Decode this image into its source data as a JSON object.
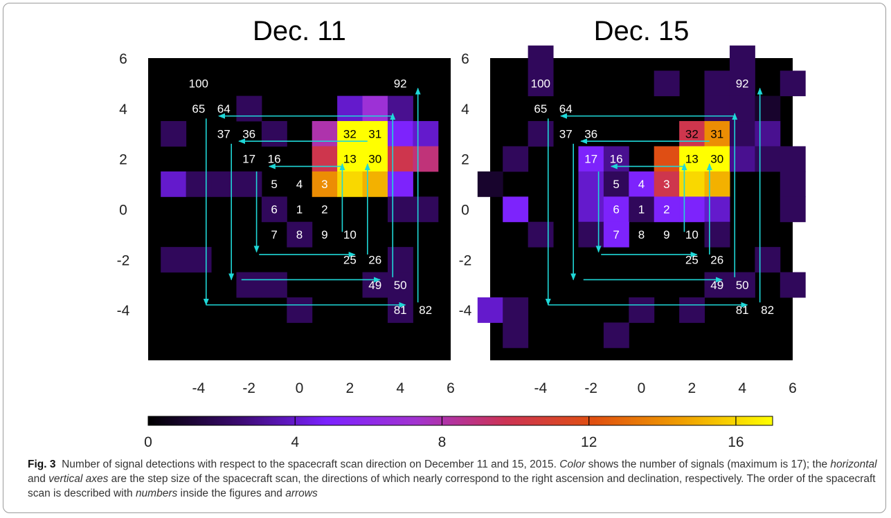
{
  "chart_data": [
    {
      "type": "heatmap",
      "title": "Dec. 11",
      "xlim": [
        -6,
        6
      ],
      "ylim": [
        -6,
        6
      ],
      "x_ticks": [
        "-4",
        "-2",
        "0",
        "2",
        "4",
        "6"
      ],
      "y_ticks": [
        "6",
        "4",
        "2",
        "0",
        "-2",
        "-4"
      ],
      "cells": [
        {
          "x": 2,
          "y": 4,
          "value": 4
        },
        {
          "x": 3,
          "y": 4,
          "value": 7
        },
        {
          "x": 4,
          "y": 4,
          "value": 3
        },
        {
          "x": -2,
          "y": 4,
          "value": 2
        },
        {
          "x": -5,
          "y": 3,
          "value": 2
        },
        {
          "x": -1,
          "y": 3,
          "value": 2
        },
        {
          "x": 1,
          "y": 3,
          "value": 8
        },
        {
          "x": 2,
          "y": 3,
          "value": 17
        },
        {
          "x": 3,
          "y": 3,
          "value": 17
        },
        {
          "x": 4,
          "y": 3,
          "value": 5
        },
        {
          "x": 5,
          "y": 3,
          "value": 4
        },
        {
          "x": 1,
          "y": 2,
          "value": 10
        },
        {
          "x": 2,
          "y": 2,
          "value": 17
        },
        {
          "x": 3,
          "y": 2,
          "value": 17
        },
        {
          "x": 4,
          "y": 2,
          "value": 10
        },
        {
          "x": 5,
          "y": 2,
          "value": 9
        },
        {
          "x": -5,
          "y": 1,
          "value": 4
        },
        {
          "x": -4,
          "y": 1,
          "value": 2
        },
        {
          "x": -3,
          "y": 1,
          "value": 2
        },
        {
          "x": -2,
          "y": 1,
          "value": 2
        },
        {
          "x": 1,
          "y": 1,
          "value": 14
        },
        {
          "x": 2,
          "y": 1,
          "value": 16
        },
        {
          "x": 3,
          "y": 1,
          "value": 15
        },
        {
          "x": 4,
          "y": 1,
          "value": 5
        },
        {
          "x": -1,
          "y": 0,
          "value": 2
        },
        {
          "x": 4,
          "y": 0,
          "value": 2
        },
        {
          "x": 5,
          "y": 0,
          "value": 2
        },
        {
          "x": 0,
          "y": -1,
          "value": 2
        },
        {
          "x": -5,
          "y": -2,
          "value": 2
        },
        {
          "x": -4,
          "y": -2,
          "value": 2
        },
        {
          "x": 4,
          "y": -2,
          "value": 2
        },
        {
          "x": -2,
          "y": -3,
          "value": 2
        },
        {
          "x": -1,
          "y": -3,
          "value": 2
        },
        {
          "x": 3,
          "y": -3,
          "value": 2
        },
        {
          "x": 4,
          "y": -3,
          "value": 2
        },
        {
          "x": 0,
          "y": -4,
          "value": 2
        },
        {
          "x": 4,
          "y": -4,
          "value": 2
        }
      ],
      "labels": [
        {
          "text": "100",
          "x": -4,
          "y": 5,
          "color": "white"
        },
        {
          "text": "92",
          "x": 4,
          "y": 5,
          "color": "white"
        },
        {
          "text": "65",
          "x": -4,
          "y": 4,
          "color": "white"
        },
        {
          "text": "64",
          "x": -3,
          "y": 4,
          "color": "white"
        },
        {
          "text": "37",
          "x": -3,
          "y": 3,
          "color": "white"
        },
        {
          "text": "36",
          "x": -2,
          "y": 3,
          "color": "white"
        },
        {
          "text": "32",
          "x": 2,
          "y": 3,
          "color": "black"
        },
        {
          "text": "31",
          "x": 3,
          "y": 3,
          "color": "black"
        },
        {
          "text": "17",
          "x": -2,
          "y": 2,
          "color": "white"
        },
        {
          "text": "16",
          "x": -1,
          "y": 2,
          "color": "white"
        },
        {
          "text": "13",
          "x": 2,
          "y": 2,
          "color": "black"
        },
        {
          "text": "30",
          "x": 3,
          "y": 2,
          "color": "black"
        },
        {
          "text": "5",
          "x": -1,
          "y": 1,
          "color": "white"
        },
        {
          "text": "4",
          "x": 0,
          "y": 1,
          "color": "white"
        },
        {
          "text": "3",
          "x": 1,
          "y": 1,
          "color": "white"
        },
        {
          "text": "6",
          "x": -1,
          "y": 0,
          "color": "white"
        },
        {
          "text": "1",
          "x": 0,
          "y": 0,
          "color": "white"
        },
        {
          "text": "2",
          "x": 1,
          "y": 0,
          "color": "white"
        },
        {
          "text": "7",
          "x": -1,
          "y": -1,
          "color": "white"
        },
        {
          "text": "8",
          "x": 0,
          "y": -1,
          "color": "white"
        },
        {
          "text": "9",
          "x": 1,
          "y": -1,
          "color": "white"
        },
        {
          "text": "10",
          "x": 2,
          "y": -1,
          "color": "white"
        },
        {
          "text": "25",
          "x": 2,
          "y": -2,
          "color": "white"
        },
        {
          "text": "26",
          "x": 3,
          "y": -2,
          "color": "white"
        },
        {
          "text": "49",
          "x": 3,
          "y": -3,
          "color": "white"
        },
        {
          "text": "50",
          "x": 4,
          "y": -3,
          "color": "white"
        },
        {
          "text": "81",
          "x": 4,
          "y": -4,
          "color": "white"
        },
        {
          "text": "82",
          "x": 5,
          "y": -4,
          "color": "white"
        }
      ],
      "arrows": [
        {
          "x1": 1.7,
          "y1": -0.9,
          "x2": 1.7,
          "y2": 1.8
        },
        {
          "x1": 1.7,
          "y1": 1.7,
          "x2": -1.2,
          "y2": 1.7
        },
        {
          "x1": -1.7,
          "y1": 1.5,
          "x2": -1.7,
          "y2": -1.7
        },
        {
          "x1": -1.6,
          "y1": -1.8,
          "x2": 2.2,
          "y2": -1.8
        },
        {
          "x1": 2.7,
          "y1": -1.8,
          "x2": 2.7,
          "y2": 1.8
        },
        {
          "x1": 2.7,
          "y1": 2.7,
          "x2": -2.4,
          "y2": 2.7
        },
        {
          "x1": -2.7,
          "y1": 2.6,
          "x2": -2.7,
          "y2": -2.8
        },
        {
          "x1": -2.3,
          "y1": -2.8,
          "x2": 3.2,
          "y2": -2.8
        },
        {
          "x1": 3.7,
          "y1": -2.7,
          "x2": 3.7,
          "y2": 3.8
        },
        {
          "x1": 3.7,
          "y1": 3.7,
          "x2": -3.2,
          "y2": 3.7
        },
        {
          "x1": -3.7,
          "y1": 3.6,
          "x2": -3.7,
          "y2": -3.8
        },
        {
          "x1": -3.7,
          "y1": -3.8,
          "x2": 4.2,
          "y2": -3.8
        },
        {
          "x1": 4.7,
          "y1": -3.7,
          "x2": 4.7,
          "y2": 4.8
        }
      ]
    },
    {
      "type": "heatmap",
      "title": "Dec. 15",
      "xlim": [
        -6,
        6
      ],
      "ylim": [
        -6,
        6
      ],
      "x_ticks": [
        "-4",
        "-2",
        "0",
        "2",
        "4",
        "6"
      ],
      "y_ticks": [
        "6",
        "4",
        "2",
        "0",
        "-2",
        "-4"
      ],
      "cells": [
        {
          "x": -4,
          "y": 6,
          "value": 2
        },
        {
          "x": 4,
          "y": 6,
          "value": 2
        },
        {
          "x": -4,
          "y": 5,
          "value": 2
        },
        {
          "x": 1,
          "y": 5,
          "value": 2
        },
        {
          "x": 3,
          "y": 5,
          "value": 2
        },
        {
          "x": 4,
          "y": 5,
          "value": 2
        },
        {
          "x": 6,
          "y": 5,
          "value": 2
        },
        {
          "x": 3,
          "y": 4,
          "value": 2
        },
        {
          "x": 4,
          "y": 4,
          "value": 2
        },
        {
          "x": 5,
          "y": 4,
          "value": 1
        },
        {
          "x": -4,
          "y": 3,
          "value": 2
        },
        {
          "x": 2,
          "y": 3,
          "value": 10
        },
        {
          "x": 3,
          "y": 3,
          "value": 14
        },
        {
          "x": 4,
          "y": 3,
          "value": 2
        },
        {
          "x": 5,
          "y": 3,
          "value": 3
        },
        {
          "x": -5,
          "y": 2,
          "value": 2
        },
        {
          "x": -2,
          "y": 2,
          "value": 5
        },
        {
          "x": -1,
          "y": 2,
          "value": 3
        },
        {
          "x": 1,
          "y": 2,
          "value": 12
        },
        {
          "x": 2,
          "y": 2,
          "value": 17
        },
        {
          "x": 3,
          "y": 2,
          "value": 17
        },
        {
          "x": 4,
          "y": 2,
          "value": 3
        },
        {
          "x": 5,
          "y": 2,
          "value": 2
        },
        {
          "x": 6,
          "y": 2,
          "value": 2
        },
        {
          "x": -6,
          "y": 1,
          "value": 1
        },
        {
          "x": -2,
          "y": 1,
          "value": 4
        },
        {
          "x": -1,
          "y": 1,
          "value": 2
        },
        {
          "x": 0,
          "y": 1,
          "value": 5
        },
        {
          "x": 1,
          "y": 1,
          "value": 10
        },
        {
          "x": 2,
          "y": 1,
          "value": 16
        },
        {
          "x": 3,
          "y": 1,
          "value": 15
        },
        {
          "x": 6,
          "y": 1,
          "value": 2
        },
        {
          "x": -5,
          "y": 0,
          "value": 5
        },
        {
          "x": -2,
          "y": 0,
          "value": 4
        },
        {
          "x": -1,
          "y": 0,
          "value": 5
        },
        {
          "x": 0,
          "y": 0,
          "value": 2
        },
        {
          "x": 1,
          "y": 0,
          "value": 5
        },
        {
          "x": 2,
          "y": 0,
          "value": 5
        },
        {
          "x": 3,
          "y": 0,
          "value": 4
        },
        {
          "x": 6,
          "y": 0,
          "value": 2
        },
        {
          "x": -4,
          "y": -1,
          "value": 2
        },
        {
          "x": -2,
          "y": -1,
          "value": 2
        },
        {
          "x": -1,
          "y": -1,
          "value": 5
        },
        {
          "x": 3,
          "y": -1,
          "value": 2
        },
        {
          "x": 5,
          "y": -2,
          "value": 2
        },
        {
          "x": 3,
          "y": -3,
          "value": 2
        },
        {
          "x": 4,
          "y": -3,
          "value": 2
        },
        {
          "x": 6,
          "y": -3,
          "value": 2
        },
        {
          "x": -6,
          "y": -4,
          "value": 4
        },
        {
          "x": -5,
          "y": -4,
          "value": 2
        },
        {
          "x": 0,
          "y": -4,
          "value": 2
        },
        {
          "x": 2,
          "y": -4,
          "value": 2
        },
        {
          "x": -5,
          "y": -5,
          "value": 2
        },
        {
          "x": -1,
          "y": -5,
          "value": 2
        }
      ],
      "labels": [
        {
          "text": "100",
          "x": -4,
          "y": 5,
          "color": "white"
        },
        {
          "text": "92",
          "x": 4,
          "y": 5,
          "color": "white"
        },
        {
          "text": "65",
          "x": -4,
          "y": 4,
          "color": "white"
        },
        {
          "text": "64",
          "x": -3,
          "y": 4,
          "color": "white"
        },
        {
          "text": "37",
          "x": -3,
          "y": 3,
          "color": "white"
        },
        {
          "text": "36",
          "x": -2,
          "y": 3,
          "color": "white"
        },
        {
          "text": "32",
          "x": 2,
          "y": 3,
          "color": "black"
        },
        {
          "text": "31",
          "x": 3,
          "y": 3,
          "color": "black"
        },
        {
          "text": "17",
          "x": -2,
          "y": 2,
          "color": "white"
        },
        {
          "text": "16",
          "x": -1,
          "y": 2,
          "color": "white"
        },
        {
          "text": "13",
          "x": 2,
          "y": 2,
          "color": "black"
        },
        {
          "text": "30",
          "x": 3,
          "y": 2,
          "color": "black"
        },
        {
          "text": "5",
          "x": -1,
          "y": 1,
          "color": "white"
        },
        {
          "text": "4",
          "x": 0,
          "y": 1,
          "color": "white"
        },
        {
          "text": "3",
          "x": 1,
          "y": 1,
          "color": "white"
        },
        {
          "text": "6",
          "x": -1,
          "y": 0,
          "color": "white"
        },
        {
          "text": "1",
          "x": 0,
          "y": 0,
          "color": "white"
        },
        {
          "text": "2",
          "x": 1,
          "y": 0,
          "color": "white"
        },
        {
          "text": "7",
          "x": -1,
          "y": -1,
          "color": "white"
        },
        {
          "text": "8",
          "x": 0,
          "y": -1,
          "color": "white"
        },
        {
          "text": "9",
          "x": 1,
          "y": -1,
          "color": "white"
        },
        {
          "text": "10",
          "x": 2,
          "y": -1,
          "color": "white"
        },
        {
          "text": "25",
          "x": 2,
          "y": -2,
          "color": "white"
        },
        {
          "text": "26",
          "x": 3,
          "y": -2,
          "color": "white"
        },
        {
          "text": "49",
          "x": 3,
          "y": -3,
          "color": "white"
        },
        {
          "text": "50",
          "x": 4,
          "y": -3,
          "color": "white"
        },
        {
          "text": "81",
          "x": 4,
          "y": -4,
          "color": "white"
        },
        {
          "text": "82",
          "x": 5,
          "y": -4,
          "color": "white"
        }
      ],
      "arrows": [
        {
          "x1": 1.7,
          "y1": -0.9,
          "x2": 1.7,
          "y2": 1.8
        },
        {
          "x1": 1.7,
          "y1": 1.7,
          "x2": -1.2,
          "y2": 1.7
        },
        {
          "x1": -1.7,
          "y1": 1.5,
          "x2": -1.7,
          "y2": -1.7
        },
        {
          "x1": -1.6,
          "y1": -1.8,
          "x2": 2.2,
          "y2": -1.8
        },
        {
          "x1": 2.7,
          "y1": -1.8,
          "x2": 2.7,
          "y2": 1.8
        },
        {
          "x1": 2.7,
          "y1": 2.7,
          "x2": -2.4,
          "y2": 2.7
        },
        {
          "x1": -2.7,
          "y1": 2.6,
          "x2": -2.7,
          "y2": -2.8
        },
        {
          "x1": -2.3,
          "y1": -2.8,
          "x2": 3.2,
          "y2": -2.8
        },
        {
          "x1": 3.7,
          "y1": -2.7,
          "x2": 3.7,
          "y2": 3.8
        },
        {
          "x1": 3.7,
          "y1": 3.7,
          "x2": -3.2,
          "y2": 3.7
        },
        {
          "x1": -3.7,
          "y1": 3.6,
          "x2": -3.7,
          "y2": -3.8
        },
        {
          "x1": -3.7,
          "y1": -3.8,
          "x2": 4.2,
          "y2": -3.8
        },
        {
          "x1": 4.7,
          "y1": -3.7,
          "x2": 4.7,
          "y2": 4.8
        }
      ]
    }
  ],
  "colorbar": {
    "min": 0,
    "max": 17,
    "tick_values": [
      0,
      4,
      8,
      12,
      16
    ],
    "tick_labels": [
      "0",
      "4",
      "8",
      "12",
      "16"
    ],
    "colors": [
      "#000000",
      "#3a0a6e",
      "#7b22ff",
      "#a233d0",
      "#cc3355",
      "#e05010",
      "#f0a000",
      "#ffff00"
    ]
  },
  "colors": {
    "arrow": "#1fd8d8",
    "background": "#000000"
  },
  "caption": {
    "fig_label": "Fig. 3",
    "part1": "Number of signal detections with respect to the spacecraft scan direction on December 11 and 15, 2015. ",
    "color_word": "Color",
    "part2": " shows the number of signals (maximum is 17); the ",
    "horizontal_word": "horizontal",
    "part3": " and ",
    "vertical_word": "vertical axes",
    "part4": " are the step size of the spacecraft scan, the directions of which nearly correspond to the right ascension and declination, respectively. The order of the spacecraft scan is described with ",
    "numbers_word": "numbers",
    "part5": " inside the figures and ",
    "arrows_word": "arrows"
  }
}
